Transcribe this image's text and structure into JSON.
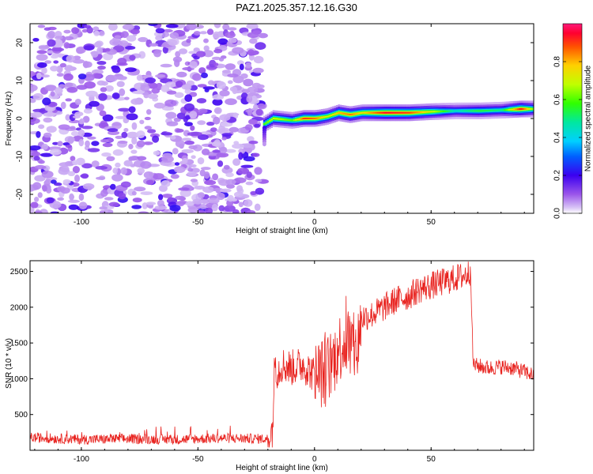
{
  "title": "PAZ1.2025.357.12.16.G30",
  "chart_data": [
    {
      "type": "heatmap",
      "xlabel": "Height of straight line (km)",
      "ylabel": "Frequency (Hz)",
      "xlim": [
        -122,
        94
      ],
      "ylim": [
        -25,
        25
      ],
      "xticks": [
        -100,
        -50,
        0,
        50
      ],
      "yticks": [
        -20,
        -10,
        0,
        10,
        20
      ],
      "colorbar": {
        "label": "Normalized spectral amplitude",
        "range": [
          0,
          1
        ],
        "ticks": [
          "0.0",
          "0.2",
          "0.4",
          "0.6",
          "0.8"
        ]
      },
      "noise_region": {
        "x_range": [
          -122,
          -22
        ],
        "amplitude_range": [
          0.0,
          0.15
        ]
      },
      "signal_trace": {
        "x": [
          -22,
          -18,
          -10,
          -5,
          0,
          5,
          10,
          15,
          20,
          30,
          40,
          50,
          60,
          70,
          80,
          88,
          94
        ],
        "frequency": [
          -1.5,
          0,
          -0.5,
          0,
          0,
          0.5,
          1.5,
          1,
          1.5,
          1.5,
          1.5,
          1.8,
          2,
          2,
          2.2,
          2.5,
          2.5
        ],
        "peak_amplitude": [
          0.6,
          0.7,
          0.6,
          0.9,
          0.85,
          0.7,
          0.8,
          0.85,
          0.75,
          0.95,
          0.9,
          0.7,
          0.45,
          0.55,
          0.5,
          0.95,
          0.6
        ]
      }
    },
    {
      "type": "line",
      "xlabel": "Height of straight line (km)",
      "ylabel": "SNR (10 * v/v)",
      "xlim": [
        -122,
        94
      ],
      "ylim": [
        0,
        2650
      ],
      "xticks": [
        -100,
        -50,
        0,
        50
      ],
      "yticks": [
        500,
        1000,
        1500,
        2000,
        2500
      ],
      "series": [
        {
          "name": "SNR",
          "color": "#e8221e",
          "x": [
            -122,
            -100,
            -80,
            -60,
            -40,
            -20,
            -18,
            -17,
            -16,
            -14,
            -10,
            -5,
            0,
            5,
            8,
            10,
            12,
            15,
            18,
            20,
            25,
            30,
            35,
            40,
            45,
            50,
            55,
            60,
            65,
            67,
            68,
            70,
            75,
            80,
            85,
            90,
            94
          ],
          "y": [
            180,
            150,
            160,
            150,
            170,
            160,
            300,
            1300,
            1100,
            1200,
            1150,
            1200,
            1050,
            1100,
            1250,
            1400,
            1500,
            1550,
            1350,
            1850,
            1900,
            2000,
            2100,
            2150,
            2250,
            2300,
            2350,
            2400,
            2450,
            2500,
            1200,
            1180,
            1150,
            1170,
            1150,
            1100,
            1050
          ]
        }
      ]
    }
  ]
}
